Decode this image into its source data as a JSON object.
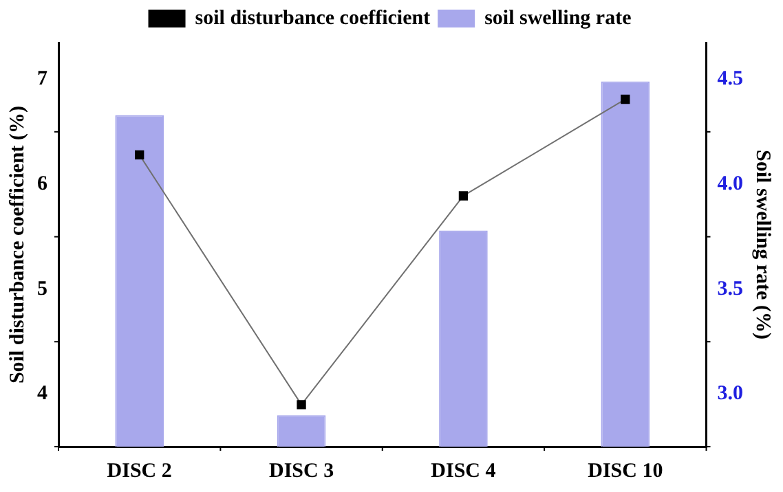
{
  "chart_data": {
    "type": "bar",
    "categories": [
      "DISC 2",
      "DISC 3",
      "DISC 4",
      "DISC 10"
    ],
    "series": [
      {
        "name": "soil disturbance coefficient",
        "type": "line",
        "color": "#000000",
        "values": [
          6.28,
          3.9,
          5.89,
          6.81
        ],
        "marker": "square"
      },
      {
        "name": "soil swelling rate",
        "axis": "y2",
        "color": "#a8a8ec",
        "values": [
          4.33,
          2.9,
          3.78,
          4.49
        ]
      }
    ],
    "ylabel": "Soil disturbance coefficient (%)",
    "y2label": "Soil swelling rate (%)",
    "ylim": [
      3.5,
      7.35
    ],
    "yticks": [
      4,
      5,
      6,
      7
    ],
    "y2lim": [
      2.75,
      4.675
    ],
    "y2ticks": [
      {
        "value": 3,
        "label": "3.0"
      },
      {
        "value": 3.5,
        "label": "3.5"
      },
      {
        "value": 4,
        "label": "4.0"
      },
      {
        "value": 4.5,
        "label": "4.5"
      }
    ],
    "legend": "top",
    "grid": false
  }
}
